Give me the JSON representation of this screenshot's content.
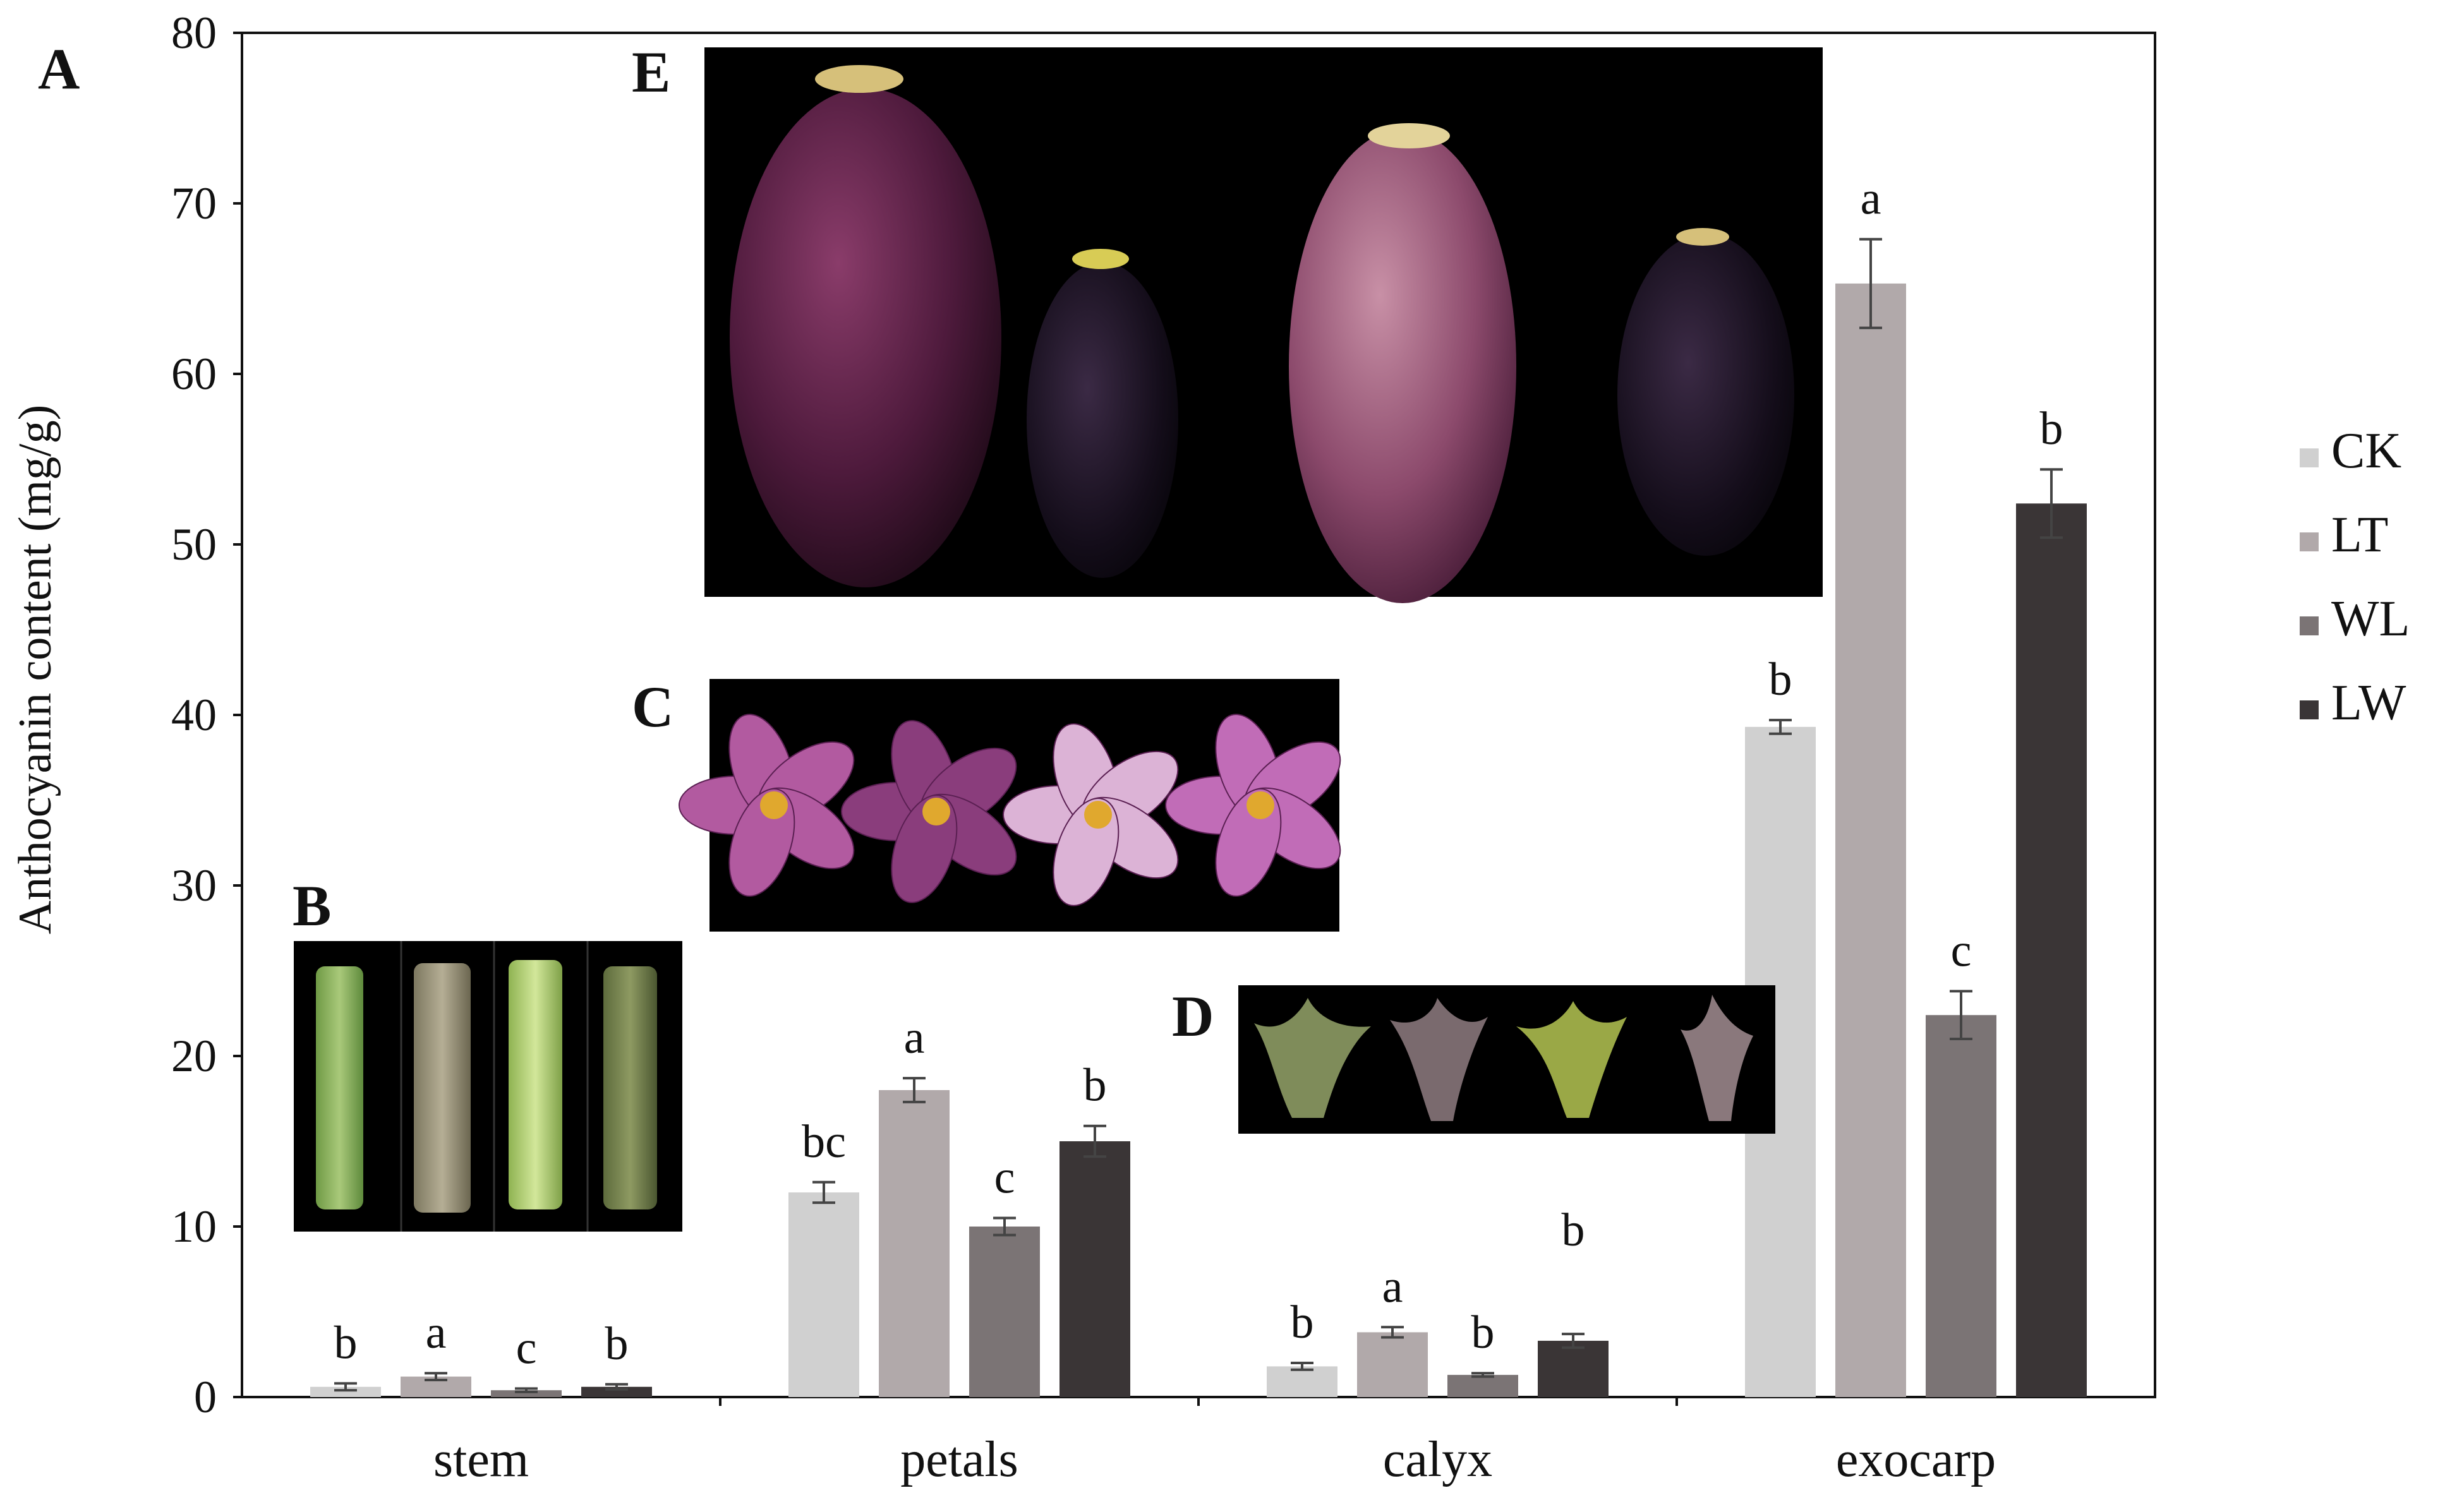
{
  "chart_data": {
    "type": "bar",
    "panel_label": "A",
    "ylabel": "Anthocyanin content (mg/g)",
    "xlabel": "",
    "ylim": [
      0,
      80
    ],
    "yticks": [
      "0",
      "10",
      "20",
      "30",
      "40",
      "50",
      "60",
      "70",
      "80"
    ],
    "categories": [
      "stem",
      "petals",
      "calyx",
      "exocarp"
    ],
    "series": [
      {
        "name": "CK",
        "color": "#d0d0d0",
        "values": [
          0.6,
          12.0,
          1.8,
          39.3
        ],
        "errors": [
          0.2,
          0.6,
          0.2,
          0.4
        ],
        "letters": [
          "b",
          "bc",
          "b",
          "b"
        ]
      },
      {
        "name": "LT",
        "color": "#b1a9aa",
        "values": [
          1.2,
          18.0,
          3.8,
          65.3
        ],
        "errors": [
          0.2,
          0.7,
          0.3,
          2.6
        ],
        "letters": [
          "a",
          "a",
          "a",
          "a"
        ]
      },
      {
        "name": "WL",
        "color": "#7b7475",
        "values": [
          0.4,
          10.0,
          1.3,
          22.4
        ],
        "errors": [
          0.1,
          0.5,
          0.1,
          1.4
        ],
        "letters": [
          "c",
          "c",
          "b",
          "c"
        ]
      },
      {
        "name": "LW",
        "color": "#3a3536",
        "values": [
          0.6,
          15.0,
          3.3,
          52.4
        ],
        "errors": [
          0.15,
          0.9,
          0.4,
          2.0
        ],
        "letters": [
          "b",
          "b",
          "b",
          "b"
        ]
      }
    ],
    "legend": {
      "position": "right",
      "entries": [
        "CK",
        "LT",
        "WL",
        "LW"
      ]
    },
    "insets": [
      {
        "label": "E",
        "subject": "eggplant fruits"
      },
      {
        "label": "C",
        "subject": "flowers"
      },
      {
        "label": "B",
        "subject": "stems"
      },
      {
        "label": "D",
        "subject": "calyxes"
      }
    ]
  }
}
